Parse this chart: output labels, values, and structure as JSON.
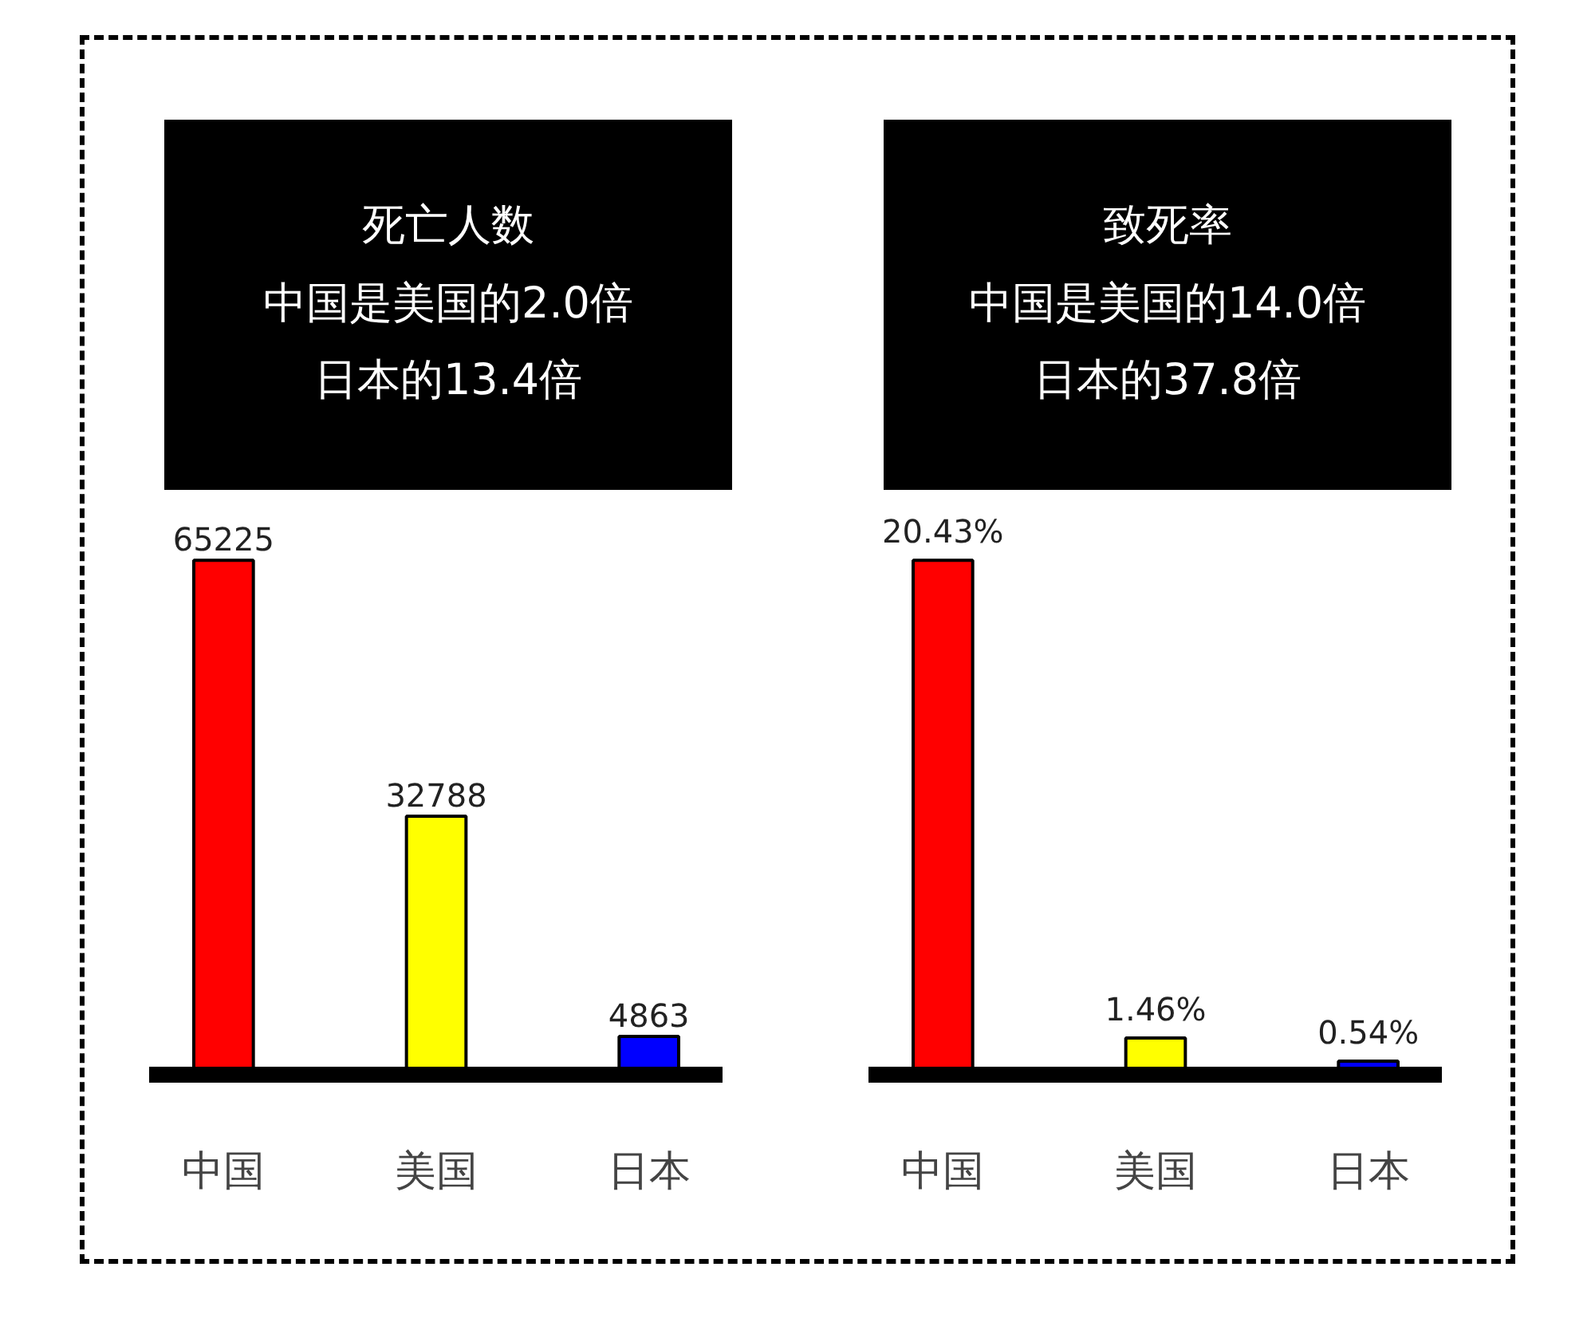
{
  "chart_data": [
    {
      "type": "bar",
      "title": "死亡人数",
      "annotations": [
        "中国是美国的2.0倍",
        "日本的13.4倍"
      ],
      "categories": [
        "中国",
        "美国",
        "日本"
      ],
      "values": [
        65225,
        32788,
        4863
      ],
      "colors": [
        "#ff0000",
        "#ffff00",
        "#0000ff"
      ],
      "data_labels": true,
      "grid": false
    },
    {
      "type": "bar",
      "title": "致死率",
      "annotations": [
        "中国是美国的14.0倍",
        "日本的37.8倍"
      ],
      "categories": [
        "中国",
        "美国",
        "日本"
      ],
      "values": [
        20.43,
        1.46,
        0.54
      ],
      "value_labels": [
        "20.43%",
        "1.46%",
        "0.54%"
      ],
      "colors": [
        "#ff0000",
        "#ffff00",
        "#0000ff"
      ],
      "grid": false
    }
  ]
}
